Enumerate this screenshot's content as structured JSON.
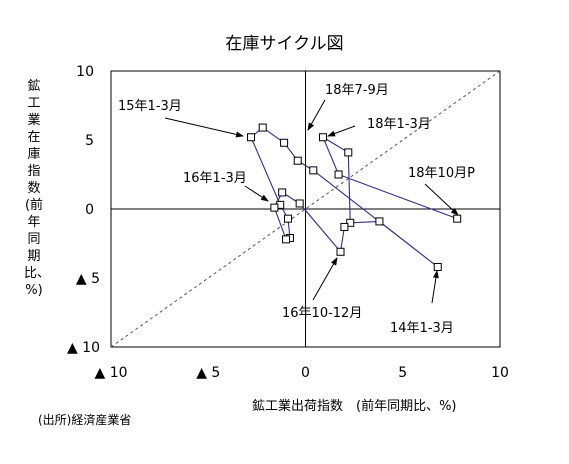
{
  "title": "在庫サイクル図",
  "source": "(出所)経済産業省",
  "chart_data": {
    "type": "line",
    "title": "在庫サイクル図",
    "xlabel": "鉱工業出荷指数　(前年同期比、%)",
    "ylabel": "鉱工業在庫指数　(前年同期比、%)",
    "xlim": [
      -10,
      10
    ],
    "ylim": [
      -10,
      10
    ],
    "x_ticks": [
      "▲ 10",
      "▲ 5",
      "0",
      "5",
      "10"
    ],
    "y_ticks": [
      "10",
      "5",
      "0",
      "▲ 5",
      "▲ 10"
    ],
    "x_tick_values": [
      -10,
      -5,
      0,
      5,
      10
    ],
    "y_tick_values": [
      10,
      5,
      0,
      -5,
      -10
    ],
    "reference_line": {
      "style": "dashed",
      "label": "",
      "from": [
        -10,
        -10
      ],
      "to": [
        10,
        10
      ]
    },
    "series": [
      {
        "points": [
          {
            "x": 7.8,
            "y": -0.7
          },
          {
            "x": 1.7,
            "y": 2.5
          },
          {
            "x": 0.9,
            "y": 5.2
          },
          {
            "x": 2.2,
            "y": 4.1
          },
          {
            "x": 2.3,
            "y": -1.0
          },
          {
            "x": 3.8,
            "y": -0.9
          },
          {
            "x": 6.8,
            "y": -4.2
          },
          {
            "x": 0.4,
            "y": 2.8
          },
          {
            "x": -0.4,
            "y": 3.5
          },
          {
            "x": -1.1,
            "y": 4.8
          },
          {
            "x": -2.2,
            "y": 5.9
          },
          {
            "x": -2.8,
            "y": 5.2
          },
          {
            "x": -1.3,
            "y": 0.3
          },
          {
            "x": -0.9,
            "y": -0.7
          },
          {
            "x": -0.8,
            "y": -2.1
          },
          {
            "x": -1.0,
            "y": -2.2
          },
          {
            "x": -1.6,
            "y": 0.1
          },
          {
            "x": -1.2,
            "y": 1.2
          },
          {
            "x": -0.3,
            "y": 0.4
          },
          {
            "x": 1.8,
            "y": -3.1
          },
          {
            "x": 2.0,
            "y": -1.3
          }
        ]
      }
    ],
    "annotations": [
      {
        "text": "15年1-3月",
        "x": -2.8,
        "y": 5.2
      },
      {
        "text": "18年7-9月",
        "x": 0.9,
        "y": 5.2
      },
      {
        "text": "18年1-3月",
        "x": 1.7,
        "y": 5.3
      },
      {
        "text": "16年1-3月",
        "x": -1.6,
        "y": 0.1
      },
      {
        "text": "18年10月P",
        "x": 7.8,
        "y": -0.7
      },
      {
        "text": "16年10-12月",
        "x": 1.8,
        "y": -3.1
      },
      {
        "text": "14年1-3月",
        "x": 6.8,
        "y": -4.2
      }
    ]
  }
}
